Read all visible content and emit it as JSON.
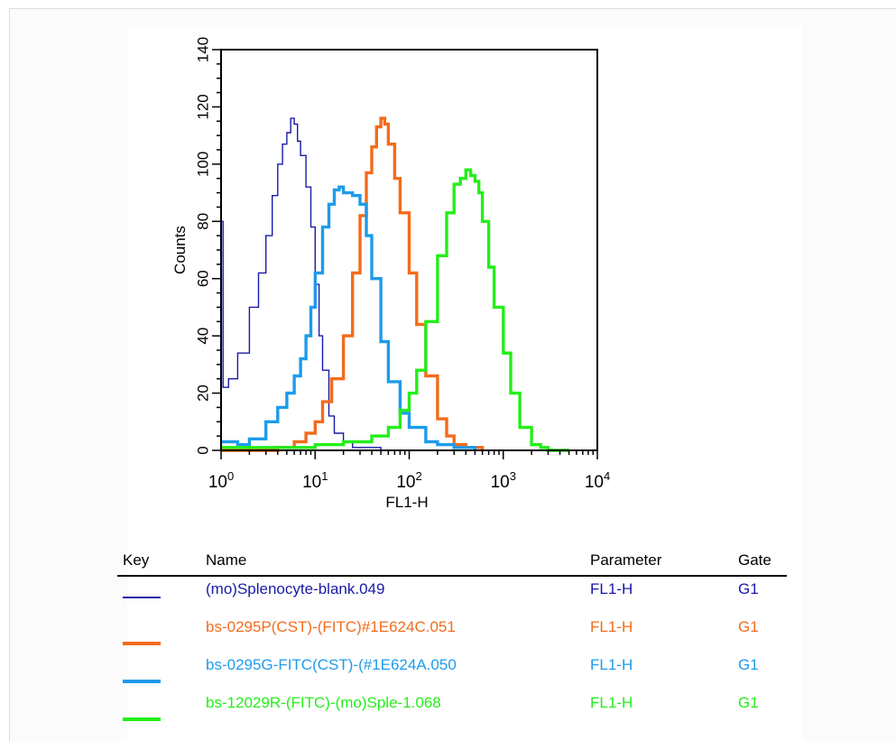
{
  "chart_data": {
    "type": "line",
    "title": "",
    "xlabel": "FL1-H",
    "ylabel": "Counts",
    "xscale": "log",
    "xlim": [
      1,
      10000
    ],
    "ylim": [
      0,
      140
    ],
    "x_tick_labels": [
      "10^0",
      "10^1",
      "10^2",
      "10^3",
      "10^4"
    ],
    "y_ticks": [
      0,
      20,
      40,
      60,
      80,
      100,
      120,
      140
    ],
    "grid": false,
    "series": [
      {
        "name": "(mo)Splenocyte-blank.049",
        "color": "#1a1aa6",
        "line": "thin",
        "x": [
          1.0,
          1.05,
          1.2,
          1.5,
          2.0,
          2.5,
          3.0,
          3.5,
          4.0,
          4.5,
          5.0,
          5.5,
          6.0,
          6.5,
          7.0,
          8.0,
          9.0,
          10.0,
          11.0,
          12.0,
          14.0,
          16.0,
          20.0,
          25.0,
          30.0,
          40.0,
          50.0,
          60.0
        ],
        "y": [
          80.0,
          22.0,
          25.0,
          34.0,
          50.0,
          62.0,
          75.0,
          89.0,
          100.0,
          107.0,
          111.0,
          116.0,
          114.0,
          108.0,
          103.0,
          92.0,
          78.0,
          58.0,
          40.0,
          28.0,
          12.0,
          6.0,
          3.0,
          1.0,
          1.0,
          1.0,
          0.0,
          0.0
        ]
      },
      {
        "name": "bs-0295P(CST)-(FITC)#1E624C.051",
        "color": "#f26c1c",
        "line": "thick",
        "x": [
          1.0,
          2.0,
          4.0,
          6.0,
          8.0,
          10.0,
          12.0,
          15.0,
          20.0,
          25.0,
          30.0,
          35.0,
          40.0,
          45.0,
          50.0,
          55.0,
          60.0,
          70.0,
          80.0,
          100.0,
          120.0,
          150.0,
          200.0,
          250.0,
          300.0,
          400.0,
          500.0,
          600.0
        ],
        "y": [
          0.0,
          0.0,
          1.0,
          3.0,
          6.0,
          10.0,
          17.0,
          25.0,
          40.0,
          62.0,
          82.0,
          97.0,
          106.0,
          113.0,
          116.0,
          114.0,
          107.0,
          95.0,
          83.0,
          62.0,
          44.0,
          26.0,
          11.0,
          5.0,
          2.0,
          1.0,
          1.0,
          0.0
        ]
      },
      {
        "name": "bs-0295G-FITC(CST)-(#1E624A.050",
        "color": "#1e9bea",
        "line": "thick",
        "x": [
          1.0,
          1.5,
          2.0,
          3.0,
          4.0,
          5.0,
          6.0,
          7.0,
          8.0,
          9.0,
          10.0,
          12.0,
          14.0,
          16.0,
          18.0,
          20.0,
          25.0,
          30.0,
          35.0,
          40.0,
          50.0,
          60.0,
          80.0,
          100.0,
          150.0,
          200.0,
          300.0,
          500.0
        ],
        "y": [
          3.0,
          2.0,
          4.0,
          10.0,
          15.0,
          20.0,
          26.0,
          32.0,
          40.0,
          50.0,
          62.0,
          78.0,
          86.0,
          91.0,
          92.0,
          90.0,
          89.0,
          86.0,
          75.0,
          60.0,
          38.0,
          24.0,
          13.0,
          8.0,
          3.0,
          2.0,
          1.0,
          0.0
        ]
      },
      {
        "name": "bs-12029R-(FITC)-(mo)Sple-1.068",
        "color": "#24ee1a",
        "line": "thick",
        "x": [
          1.0,
          5.0,
          10.0,
          20.0,
          40.0,
          60.0,
          80.0,
          100.0,
          120.0,
          150.0,
          200.0,
          250.0,
          300.0,
          350.0,
          400.0,
          450.0,
          500.0,
          550.0,
          600.0,
          700.0,
          800.0,
          1000.0,
          1200.0,
          1500.0,
          2000.0,
          2500.0,
          3000.0,
          5000.0
        ],
        "y": [
          1.0,
          1.0,
          2.0,
          3.0,
          5.0,
          8.0,
          14.0,
          20.0,
          28.0,
          45.0,
          68.0,
          83.0,
          93.0,
          95.0,
          98.0,
          96.0,
          94.0,
          90.0,
          80.0,
          64.0,
          50.0,
          34.0,
          20.0,
          8.0,
          2.0,
          1.0,
          0.0,
          0.0
        ]
      }
    ]
  },
  "legend": {
    "headers": {
      "key": "Key",
      "name": "Name",
      "parameter": "Parameter",
      "gate": "Gate"
    },
    "rows": [
      {
        "name": "(mo)Splenocyte-blank.049",
        "parameter": "FL1-H",
        "gate": "G1",
        "color": "#1a1aa6"
      },
      {
        "name": "bs-0295P(CST)-(FITC)#1E624C.051",
        "parameter": "FL1-H",
        "gate": "G1",
        "color": "#f26c1c"
      },
      {
        "name": "bs-0295G-FITC(CST)-(#1E624A.050",
        "parameter": "FL1-H",
        "gate": "G1",
        "color": "#1e9bea"
      },
      {
        "name": "bs-12029R-(FITC)-(mo)Sple-1.068",
        "parameter": "FL1-H",
        "gate": "G1",
        "color": "#24ee1a"
      }
    ]
  }
}
